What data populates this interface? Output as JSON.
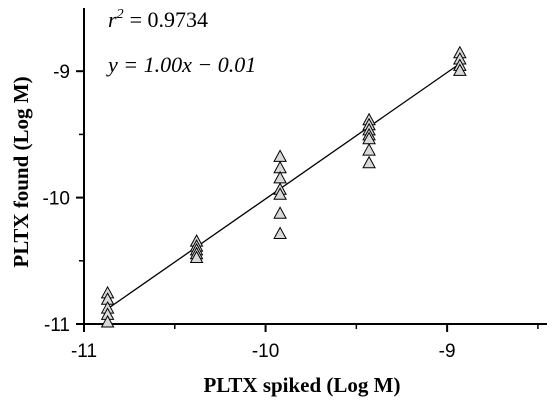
{
  "chart_data": {
    "type": "scatter",
    "xlabel": "PLTX spiked (Log M)",
    "ylabel": "PLTX found (Log M)",
    "xlim": [
      -11.0,
      -8.45
    ],
    "ylim": [
      -11.0,
      -8.5
    ],
    "x_ticks": [
      -11,
      -10,
      -9
    ],
    "y_ticks": [
      -11,
      -10,
      -9
    ],
    "x_tick_labels": [
      "-11",
      "-10",
      "-9"
    ],
    "y_tick_labels": [
      "-11",
      "-10",
      "-9"
    ],
    "grid": false,
    "marker": "triangle-open",
    "annotations": {
      "r2_symbol": "r",
      "r2_exponent": "2",
      "r2_value": "= 0.9734",
      "equation": "y = 1.00x − 0.01"
    },
    "regression_line": {
      "slope": 1.0,
      "intercept": -0.01,
      "x_range": [
        -10.87,
        -8.93
      ]
    },
    "series": [
      {
        "points": [
          {
            "x": -10.87,
            "y": -10.75
          },
          {
            "x": -10.87,
            "y": -10.8
          },
          {
            "x": -10.87,
            "y": -10.87
          },
          {
            "x": -10.87,
            "y": -10.92
          },
          {
            "x": -10.87,
            "y": -10.98
          },
          {
            "x": -10.38,
            "y": -10.34
          },
          {
            "x": -10.38,
            "y": -10.38
          },
          {
            "x": -10.38,
            "y": -10.41
          },
          {
            "x": -10.38,
            "y": -10.44
          },
          {
            "x": -10.38,
            "y": -10.47
          },
          {
            "x": -9.92,
            "y": -9.67
          },
          {
            "x": -9.92,
            "y": -9.76
          },
          {
            "x": -9.92,
            "y": -9.84
          },
          {
            "x": -9.92,
            "y": -9.93
          },
          {
            "x": -9.92,
            "y": -9.97
          },
          {
            "x": -9.92,
            "y": -10.12
          },
          {
            "x": -9.92,
            "y": -10.28
          },
          {
            "x": -9.43,
            "y": -9.38
          },
          {
            "x": -9.43,
            "y": -9.42
          },
          {
            "x": -9.43,
            "y": -9.46
          },
          {
            "x": -9.43,
            "y": -9.5
          },
          {
            "x": -9.43,
            "y": -9.53
          },
          {
            "x": -9.43,
            "y": -9.62
          },
          {
            "x": -9.43,
            "y": -9.72
          },
          {
            "x": -8.93,
            "y": -8.85
          },
          {
            "x": -8.93,
            "y": -8.9
          },
          {
            "x": -8.93,
            "y": -8.95
          },
          {
            "x": -8.93,
            "y": -8.99
          }
        ]
      }
    ]
  }
}
